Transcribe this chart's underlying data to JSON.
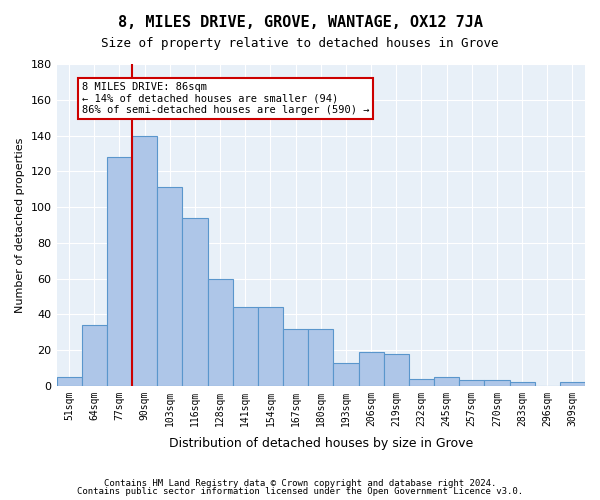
{
  "title": "8, MILES DRIVE, GROVE, WANTAGE, OX12 7JA",
  "subtitle": "Size of property relative to detached houses in Grove",
  "xlabel": "Distribution of detached houses by size in Grove",
  "ylabel": "Number of detached properties",
  "bar_labels": [
    "51sqm",
    "64sqm",
    "77sqm",
    "90sqm",
    "103sqm",
    "116sqm",
    "128sqm",
    "141sqm",
    "154sqm",
    "167sqm",
    "180sqm",
    "193sqm",
    "206sqm",
    "219sqm",
    "232sqm",
    "245sqm",
    "257sqm",
    "270sqm",
    "283sqm",
    "296sqm",
    "309sqm"
  ],
  "bar_values": [
    5,
    34,
    128,
    140,
    111,
    94,
    60,
    44,
    44,
    32,
    32,
    13,
    19,
    18,
    4,
    5,
    3,
    3,
    2,
    0,
    2
  ],
  "bar_color": "#aec6e8",
  "bar_edge_color": "#5a96cc",
  "background_color": "#e8f0f8",
  "vline_x": 2.5,
  "vline_color": "#cc0000",
  "annotation_text": "8 MILES DRIVE: 86sqm\n← 14% of detached houses are smaller (94)\n86% of semi-detached houses are larger (590) →",
  "annotation_box_color": "#ffffff",
  "annotation_box_edge": "#cc0000",
  "ylim": [
    0,
    180
  ],
  "yticks": [
    0,
    20,
    40,
    60,
    80,
    100,
    120,
    140,
    160,
    180
  ],
  "footer_line1": "Contains HM Land Registry data © Crown copyright and database right 2024.",
  "footer_line2": "Contains public sector information licensed under the Open Government Licence v3.0."
}
